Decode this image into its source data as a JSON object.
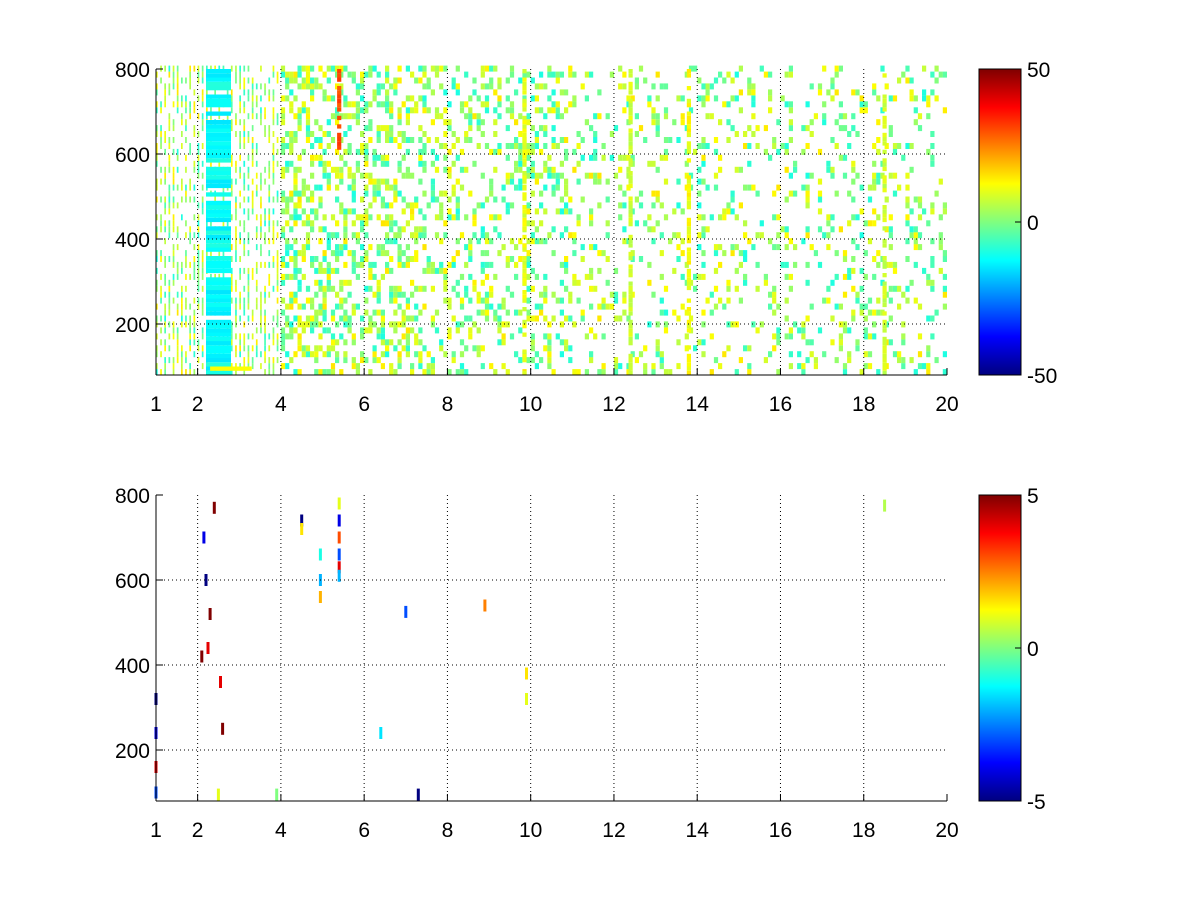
{
  "colors": {
    "background": "#ffffff",
    "axes": "#000000",
    "grid": "#000000",
    "colormap": "jet"
  },
  "chart_data": [
    {
      "type": "heatmap",
      "title": "",
      "xlabel": "",
      "ylabel": "",
      "xlim": [
        1,
        20
      ],
      "ylim": [
        80,
        800
      ],
      "grid": true,
      "x_ticks": [
        1,
        2,
        4,
        6,
        8,
        10,
        12,
        14,
        16,
        18,
        20
      ],
      "y_ticks": [
        200,
        400,
        600,
        800
      ],
      "colorbar": {
        "clim": [
          -50,
          50
        ],
        "ticks": [
          -50,
          0,
          50
        ]
      },
      "description_of_values": "sparse field; most nonzero cells lie between -15 and +20, dense at low x and thinning with x; strong columns near x=2.3-2.8, 5.4, 9.8, 12.4, 13.8, 18.5",
      "features": [
        {
          "x": [
            2.2,
            2.8
          ],
          "y": [
            80,
            800
          ],
          "value": -12
        },
        {
          "x": [
            2.3,
            3.3
          ],
          "y": [
            80,
            100
          ],
          "value": 15
        },
        {
          "x": [
            5.35,
            5.45
          ],
          "y": [
            610,
            800
          ],
          "value": 30
        },
        {
          "x": [
            9.8,
            9.9
          ],
          "y": [
            80,
            800
          ],
          "value": 10
        },
        {
          "x": [
            12.35,
            12.45
          ],
          "y": [
            80,
            800
          ],
          "value": 8
        },
        {
          "x": [
            13.75,
            13.85
          ],
          "y": [
            80,
            800
          ],
          "value": 12
        },
        {
          "x": [
            18.45,
            18.55
          ],
          "y": [
            80,
            800
          ],
          "value": 8
        }
      ]
    },
    {
      "type": "heatmap",
      "title": "",
      "xlabel": "",
      "ylabel": "",
      "xlim": [
        1,
        20
      ],
      "ylim": [
        80,
        800
      ],
      "grid": true,
      "x_ticks": [
        1,
        2,
        4,
        6,
        8,
        10,
        12,
        14,
        16,
        18,
        20
      ],
      "y_ticks": [
        200,
        400,
        600,
        800
      ],
      "colorbar": {
        "clim": [
          -5,
          5
        ],
        "ticks": [
          -5,
          0,
          5
        ]
      },
      "description_of_values": "almost entirely empty; isolated cells only",
      "cells": [
        {
          "x": 1.0,
          "y": 320,
          "value": -5
        },
        {
          "x": 1.0,
          "y": 240,
          "value": -4
        },
        {
          "x": 1.0,
          "y": 160,
          "value": 4
        },
        {
          "x": 1.0,
          "y": 100,
          "value": -3
        },
        {
          "x": 2.1,
          "y": 420,
          "value": 5
        },
        {
          "x": 2.15,
          "y": 700,
          "value": -4
        },
        {
          "x": 2.2,
          "y": 600,
          "value": -5
        },
        {
          "x": 2.25,
          "y": 440,
          "value": 4
        },
        {
          "x": 2.3,
          "y": 520,
          "value": 5
        },
        {
          "x": 2.4,
          "y": 770,
          "value": 5
        },
        {
          "x": 2.55,
          "y": 360,
          "value": 4
        },
        {
          "x": 2.6,
          "y": 250,
          "value": 5
        },
        {
          "x": 2.5,
          "y": 95,
          "value": 1
        },
        {
          "x": 3.9,
          "y": 95,
          "value": 0
        },
        {
          "x": 4.5,
          "y": 740,
          "value": -5
        },
        {
          "x": 4.5,
          "y": 720,
          "value": 1.5
        },
        {
          "x": 4.95,
          "y": 660,
          "value": -1
        },
        {
          "x": 4.95,
          "y": 600,
          "value": -2
        },
        {
          "x": 4.95,
          "y": 560,
          "value": 2
        },
        {
          "x": 5.4,
          "y": 780,
          "value": 1
        },
        {
          "x": 5.4,
          "y": 740,
          "value": -4
        },
        {
          "x": 5.4,
          "y": 700,
          "value": 3
        },
        {
          "x": 5.4,
          "y": 660,
          "value": -3
        },
        {
          "x": 5.4,
          "y": 630,
          "value": 4
        },
        {
          "x": 5.4,
          "y": 610,
          "value": -2
        },
        {
          "x": 6.4,
          "y": 240,
          "value": -1.5
        },
        {
          "x": 7.0,
          "y": 525,
          "value": -3
        },
        {
          "x": 7.3,
          "y": 95,
          "value": -5
        },
        {
          "x": 8.9,
          "y": 540,
          "value": 2.5
        },
        {
          "x": 9.9,
          "y": 380,
          "value": 1.5
        },
        {
          "x": 9.9,
          "y": 320,
          "value": 1
        },
        {
          "x": 18.5,
          "y": 775,
          "value": 0.5
        }
      ]
    }
  ]
}
